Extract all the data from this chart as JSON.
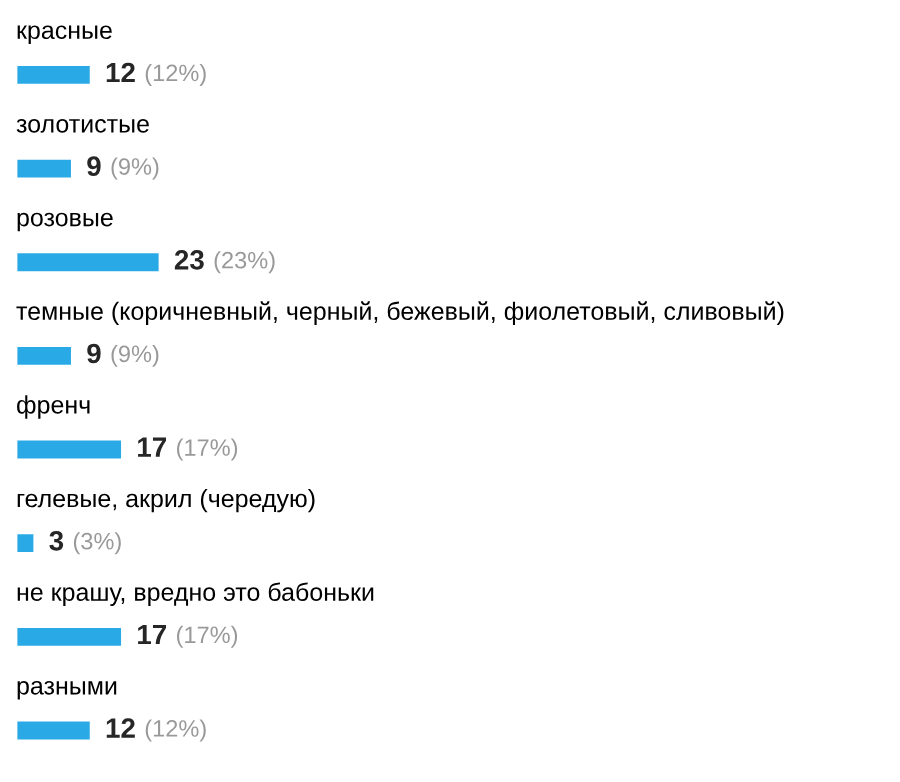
{
  "chart_data": {
    "type": "bar",
    "orientation": "horizontal",
    "categories": [
      "красные",
      "золотистые",
      "розовые",
      "темные (коричневный, черный, бежевый, фиолетовый, сливовый)",
      "френч",
      "гелевые, акрил (чередую)",
      "не крашу, вредно это бабоньки",
      "разными"
    ],
    "values": [
      12,
      9,
      23,
      9,
      17,
      3,
      17,
      12
    ],
    "value_labels": [
      "12 (12%)",
      "9 (9%)",
      "23 (23%)",
      "9 (9%)",
      "17 (17%)",
      "3 (3%)",
      "17 (17%)",
      "12 (12%)"
    ],
    "color": "#29a9e6"
  }
}
